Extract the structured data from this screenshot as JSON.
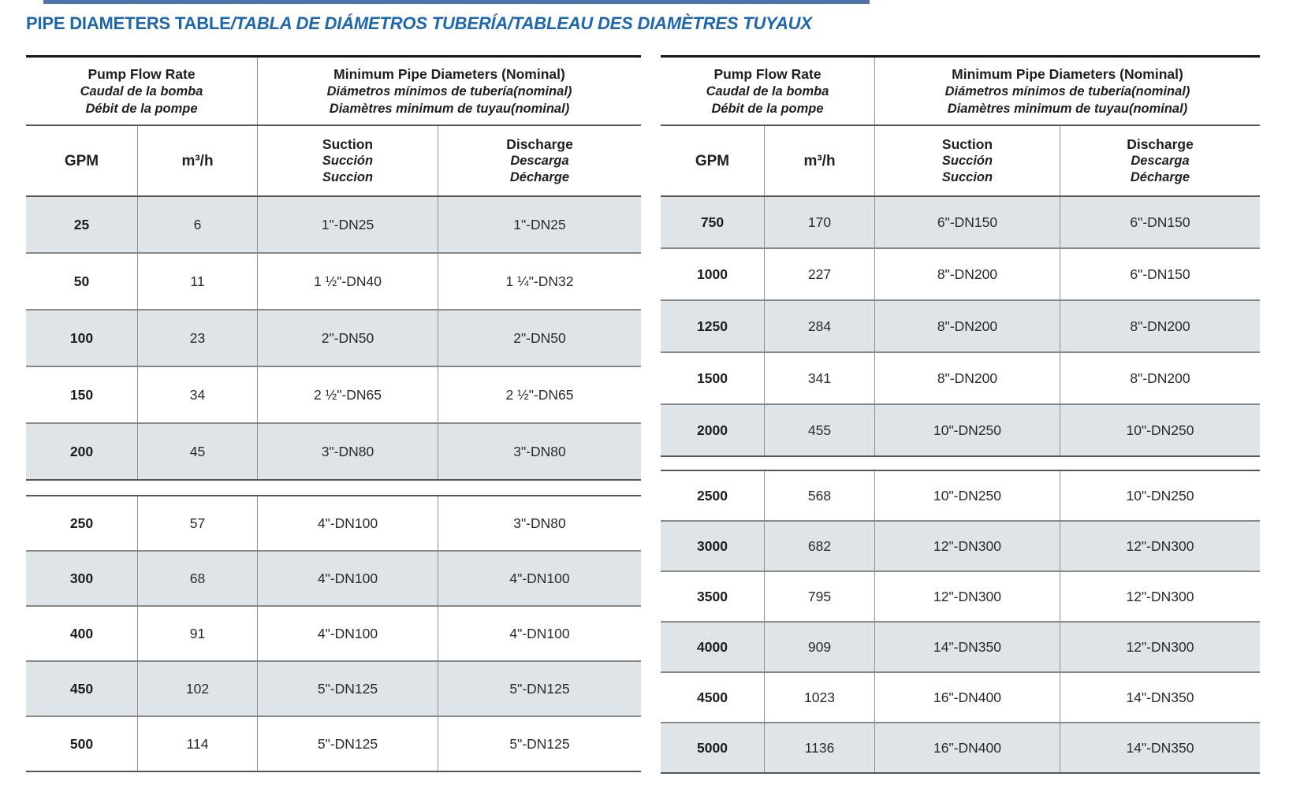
{
  "title": {
    "main": "PIPE DIAMETERS TABLE",
    "rest": "/TABLA DE DIÁMETROS TUBERÍA/TABLEAU DES DIAMÈTRES TUYAUX"
  },
  "colors": {
    "title_blue": "#1c67b0",
    "strip_blue": "#4e74ae",
    "row_shade": "#dfe4e8"
  },
  "tables": [
    {
      "id": "left",
      "header": {
        "flow_group": [
          "Pump Flow Rate",
          "Caudal de la bomba",
          "Débit de la pompe"
        ],
        "diameter_group": [
          "Minimum Pipe Diameters (Nominal)",
          "Diámetros mínimos de tubería(nominal)",
          "Diamètres minimum de tuyau(nominal)"
        ],
        "col_gpm": "GPM",
        "col_m3h": "m³/h",
        "col_suction": [
          "Suction",
          "Succión",
          "Succion"
        ],
        "col_discharge": [
          "Discharge",
          "Descarga",
          "Décharge"
        ]
      },
      "sections": [
        {
          "rows": [
            [
              "25",
              "6",
              "1\"-DN25",
              "1\"-DN25"
            ],
            [
              "50",
              "11",
              "1 ½\"-DN40",
              "1 ¼\"-DN32"
            ],
            [
              "100",
              "23",
              "2\"-DN50",
              "2\"-DN50"
            ],
            [
              "150",
              "34",
              "2 ½\"-DN65",
              "2 ½\"-DN65"
            ],
            [
              "200",
              "45",
              "3\"-DN80",
              "3\"-DN80"
            ]
          ]
        },
        {
          "rows": [
            [
              "250",
              "57",
              "4\"-DN100",
              "3\"-DN80"
            ],
            [
              "300",
              "68",
              "4\"-DN100",
              "4\"-DN100"
            ],
            [
              "400",
              "91",
              "4\"-DN100",
              "4\"-DN100"
            ],
            [
              "450",
              "102",
              "5\"-DN125",
              "5\"-DN125"
            ],
            [
              "500",
              "114",
              "5\"-DN125",
              "5\"-DN125"
            ]
          ]
        }
      ]
    },
    {
      "id": "right",
      "header": {
        "flow_group": [
          "Pump Flow Rate",
          "Caudal de la bomba",
          "Débit de la pompe"
        ],
        "diameter_group": [
          "Minimum Pipe Diameters (Nominal)",
          "Diámetros mínimos de tubería(nominal)",
          "Diamètres minimum de tuyau(nominal)"
        ],
        "col_gpm": "GPM",
        "col_m3h": "m³/h",
        "col_suction": [
          "Suction",
          "Succión",
          "Succion"
        ],
        "col_discharge": [
          "Discharge",
          "Descarga",
          "Décharge"
        ]
      },
      "sections": [
        {
          "rows": [
            [
              "750",
              "170",
              "6\"-DN150",
              "6\"-DN150"
            ],
            [
              "1000",
              "227",
              "8\"-DN200",
              "6\"-DN150"
            ],
            [
              "1250",
              "284",
              "8\"-DN200",
              "8\"-DN200"
            ],
            [
              "1500",
              "341",
              "8\"-DN200",
              "8\"-DN200"
            ],
            [
              "2000",
              "455",
              "10\"-DN250",
              "10\"-DN250"
            ]
          ]
        },
        {
          "rows": [
            [
              "2500",
              "568",
              "10\"-DN250",
              "10\"-DN250"
            ],
            [
              "3000",
              "682",
              "12\"-DN300",
              "12\"-DN300"
            ],
            [
              "3500",
              "795",
              "12\"-DN300",
              "12\"-DN300"
            ],
            [
              "4000",
              "909",
              "14\"-DN350",
              "12\"-DN300"
            ],
            [
              "4500",
              "1023",
              "16\"-DN400",
              "14\"-DN350"
            ],
            [
              "5000",
              "1136",
              "16\"-DN400",
              "14\"-DN350"
            ]
          ]
        }
      ]
    }
  ]
}
